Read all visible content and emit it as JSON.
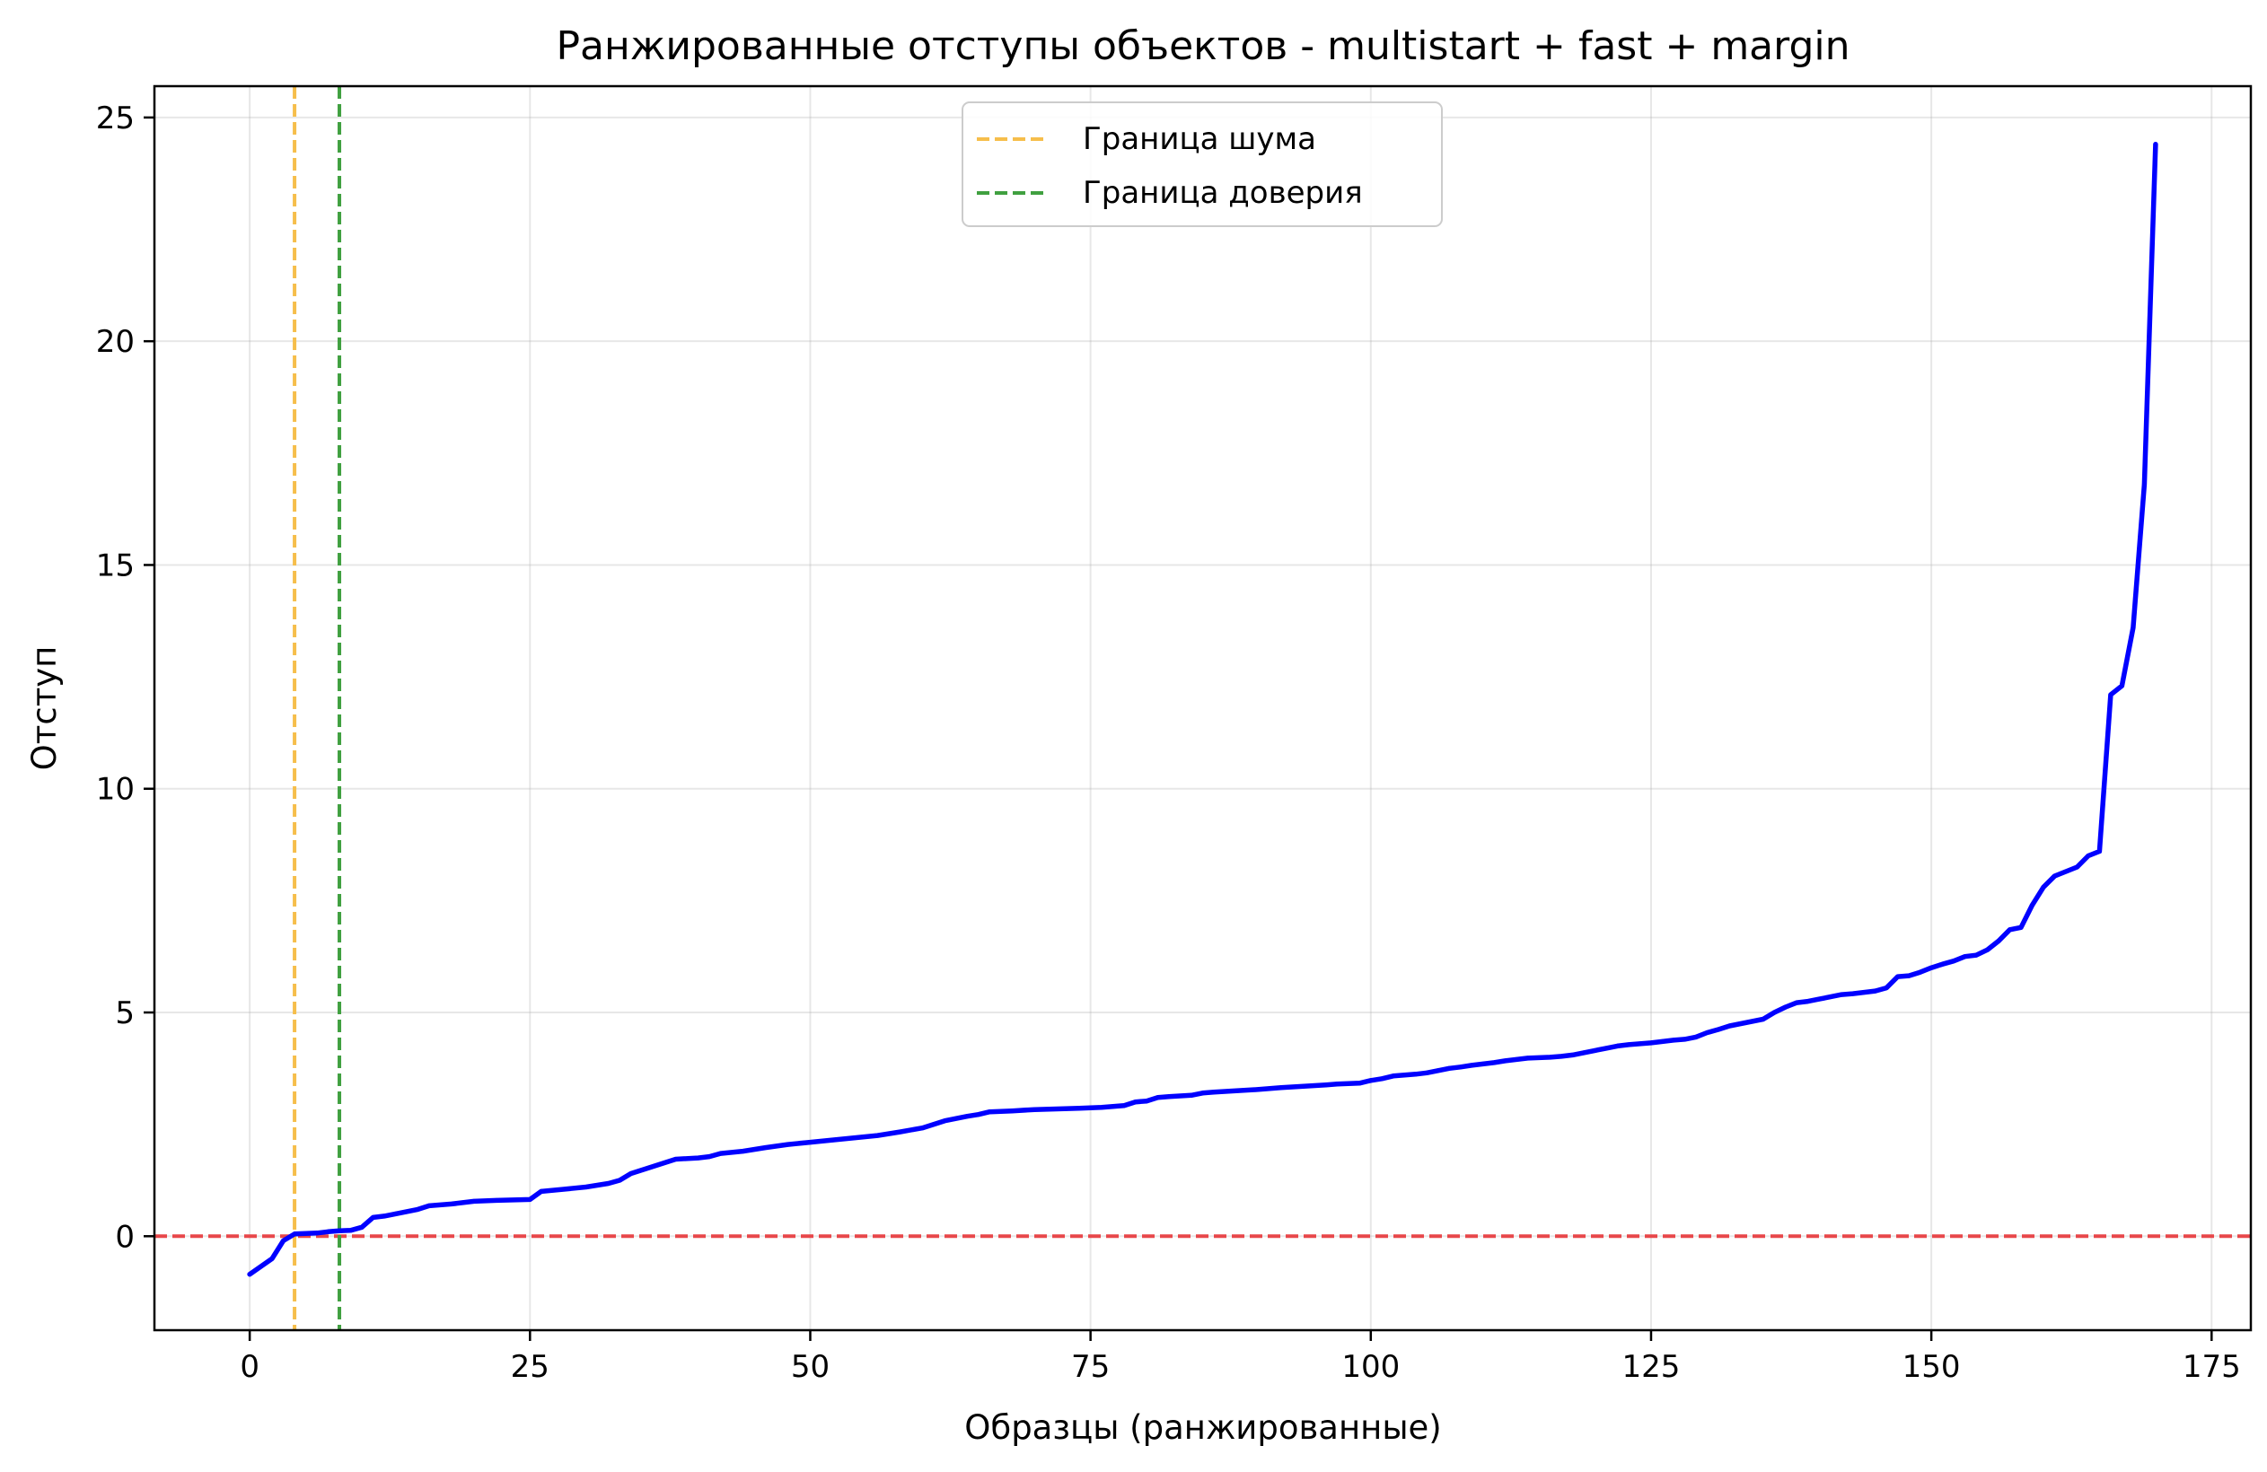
{
  "chart_data": {
    "type": "line",
    "title": "Ранжированные отступы объектов - multistart + fast + margin",
    "xlabel": "Образцы (ранжированные)",
    "ylabel": "Отступ",
    "xlim": [
      -8.5,
      178.5
    ],
    "ylim": [
      -2.1,
      25.7
    ],
    "xticks": [
      0,
      25,
      50,
      75,
      100,
      125,
      150,
      175
    ],
    "xtick_labels": [
      "0",
      "25",
      "50",
      "75",
      "100",
      "125",
      "150",
      "175"
    ],
    "yticks": [
      0,
      5,
      10,
      15,
      20,
      25
    ],
    "ytick_labels": [
      "0",
      "5",
      "10",
      "15",
      "20",
      "25"
    ],
    "grid": true,
    "legend_position": "upper center",
    "series": [
      {
        "color": "#0000ff",
        "x": [
          0,
          2,
          3,
          4,
          5,
          6,
          7,
          8,
          9,
          10,
          11,
          12,
          13,
          15,
          16,
          18,
          19,
          20,
          22,
          25,
          26,
          28,
          30,
          32,
          33,
          34,
          38,
          40,
          41,
          42,
          44,
          46,
          48,
          50,
          52,
          54,
          56,
          58,
          60,
          61,
          62,
          64,
          65,
          66,
          68,
          70,
          74,
          76,
          77,
          78,
          79,
          80,
          81,
          82,
          84,
          85,
          86,
          88,
          90,
          91,
          92,
          94,
          96,
          97,
          99,
          100,
          101,
          102,
          103,
          104,
          105,
          106,
          107,
          108,
          109,
          110,
          111,
          112,
          113,
          114,
          115,
          116,
          117,
          118,
          119,
          120,
          121,
          122,
          123,
          124,
          125,
          126,
          127,
          128,
          129,
          130,
          131,
          132,
          133,
          134,
          135,
          136,
          137,
          138,
          139,
          140,
          141,
          142,
          143,
          144,
          145,
          146,
          147,
          148,
          149,
          150,
          151,
          152,
          153,
          154,
          155,
          156,
          157,
          158,
          159,
          160,
          161,
          162,
          163,
          164,
          165,
          166,
          167,
          168,
          169,
          170
        ],
        "y": [
          -0.85,
          -0.5,
          -0.1,
          0.05,
          0.06,
          0.07,
          0.1,
          0.12,
          0.13,
          0.2,
          0.42,
          0.45,
          0.5,
          0.6,
          0.68,
          0.72,
          0.75,
          0.78,
          0.8,
          0.82,
          1.0,
          1.05,
          1.1,
          1.18,
          1.25,
          1.4,
          1.72,
          1.75,
          1.78,
          1.85,
          1.9,
          1.98,
          2.05,
          2.1,
          2.15,
          2.2,
          2.25,
          2.33,
          2.42,
          2.5,
          2.58,
          2.68,
          2.72,
          2.78,
          2.8,
          2.83,
          2.86,
          2.88,
          2.9,
          2.92,
          3.0,
          3.02,
          3.1,
          3.12,
          3.15,
          3.2,
          3.22,
          3.25,
          3.28,
          3.3,
          3.32,
          3.35,
          3.38,
          3.4,
          3.42,
          3.48,
          3.52,
          3.58,
          3.6,
          3.62,
          3.65,
          3.7,
          3.75,
          3.78,
          3.82,
          3.85,
          3.88,
          3.92,
          3.95,
          3.98,
          3.99,
          4.0,
          4.02,
          4.05,
          4.1,
          4.15,
          4.2,
          4.25,
          4.28,
          4.3,
          4.32,
          4.35,
          4.38,
          4.4,
          4.45,
          4.55,
          4.62,
          4.7,
          4.75,
          4.8,
          4.85,
          5.0,
          5.12,
          5.22,
          5.25,
          5.3,
          5.35,
          5.4,
          5.42,
          5.45,
          5.48,
          5.55,
          5.8,
          5.82,
          5.9,
          6.0,
          6.08,
          6.15,
          6.25,
          6.28,
          6.4,
          6.6,
          6.85,
          6.9,
          7.4,
          7.8,
          8.05,
          8.15,
          8.25,
          8.5,
          8.6,
          12.1,
          12.3,
          13.6,
          16.8,
          24.4
        ]
      }
    ],
    "reference_lines": [
      {
        "orientation": "horizontal",
        "value": 0,
        "color": "#e8474a",
        "style": "dashed"
      },
      {
        "orientation": "vertical",
        "value": 4,
        "color": "#f6be4b",
        "style": "dashed",
        "legend_label": "Граница шума"
      },
      {
        "orientation": "vertical",
        "value": 8,
        "color": "#40a040",
        "style": "dashed",
        "legend_label": "Граница доверия"
      }
    ]
  }
}
